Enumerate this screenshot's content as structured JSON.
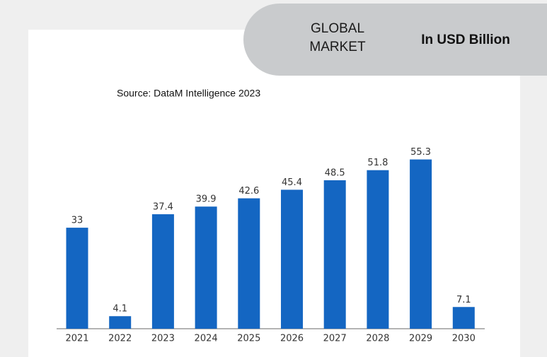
{
  "chart_data": {
    "type": "bar",
    "title_lines": [
      "GLOBAL",
      "MARKET"
    ],
    "unit_label": "In USD Billion",
    "source": "Source: DataM Intelligence 2023",
    "categories": [
      "2021",
      "2022",
      "2023",
      "2024",
      "2025",
      "2026",
      "2027",
      "2028",
      "2029",
      "2030"
    ],
    "values": [
      33,
      4.1,
      37.4,
      39.9,
      42.6,
      45.4,
      48.5,
      51.8,
      55.3,
      7.1
    ],
    "color": "#1466c2"
  }
}
